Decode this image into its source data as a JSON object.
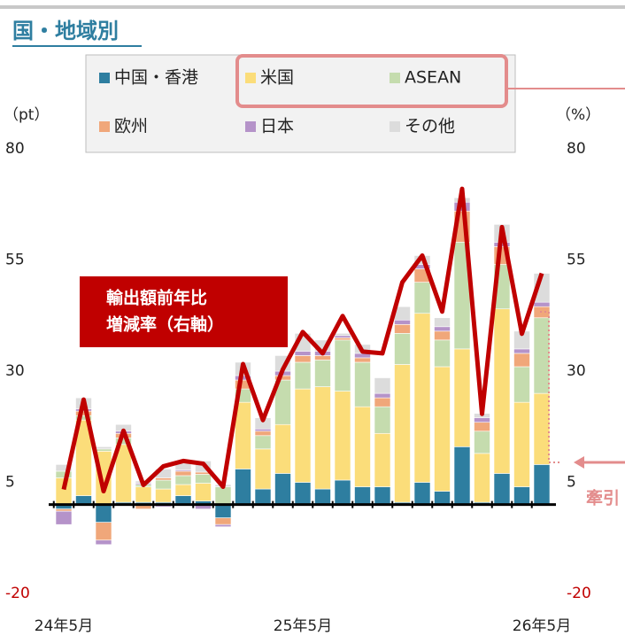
{
  "chart_data": {
    "type": "bar",
    "title": "国・地域別",
    "y_unit": "（pt）",
    "y2_unit": "（%）",
    "annotation": [
      "輸出額前年比",
      "増減率（右軸）"
    ],
    "side_note": "牽引",
    "categories": [
      "24年5月",
      null,
      null,
      null,
      null,
      null,
      null,
      null,
      null,
      null,
      null,
      null,
      "25年5月",
      null,
      null,
      null,
      null,
      null,
      null,
      null,
      null,
      null,
      null,
      null,
      "26年5月"
    ],
    "series": [
      {
        "name": "中国・香港",
        "color": "#2e7ea0",
        "values": [
          -1,
          2,
          -4,
          0.5,
          0.5,
          0.5,
          2,
          0.8,
          -3,
          8,
          3.5,
          7,
          5,
          3.5,
          5.5,
          4,
          4,
          0.5,
          5,
          3,
          13,
          0.5,
          7,
          4,
          9
        ]
      },
      {
        "name": "米国",
        "color": "#fbdd7a",
        "values": [
          6,
          17,
          12,
          13,
          3.5,
          3,
          2.5,
          4,
          0,
          15,
          9,
          11,
          21,
          23,
          20,
          18,
          12,
          31,
          38,
          28,
          22,
          11,
          37,
          19,
          16
        ]
      },
      {
        "name": "ASEAN",
        "color": "#c5dcae",
        "values": [
          1.5,
          1,
          0.5,
          1.5,
          0.5,
          2,
          2,
          2,
          4,
          3,
          3,
          10,
          6,
          6,
          11.5,
          10,
          6,
          7,
          7,
          6,
          24,
          5,
          10,
          8,
          17
        ]
      },
      {
        "name": "欧州",
        "color": "#f0a77a",
        "values": [
          -0.5,
          1,
          -4,
          1,
          -1,
          0.5,
          1,
          0.5,
          -1.5,
          2,
          1,
          1,
          1.5,
          1,
          0.5,
          1,
          2,
          2,
          3,
          2,
          7,
          2,
          4,
          3,
          2.5
        ]
      },
      {
        "name": "日本",
        "color": "#b593c9",
        "values": [
          -3,
          0.5,
          -1,
          0.5,
          0.3,
          -0.5,
          0.3,
          -1,
          -0.5,
          1,
          0.5,
          1,
          1,
          1,
          0.5,
          1,
          1,
          1,
          1,
          1,
          2,
          1,
          1,
          1,
          1
        ]
      },
      {
        "name": "その他",
        "color": "#dcdcdc",
        "values": [
          1.5,
          2.5,
          0.5,
          1.5,
          0.5,
          2,
          1.5,
          2.5,
          0.5,
          3,
          2.5,
          3.5,
          4,
          2.5,
          0.5,
          2,
          3.5,
          3,
          2,
          2,
          1,
          1,
          4,
          4,
          6.5
        ]
      },
      {
        "type": "line",
        "axis": "y2",
        "color": "#c00000",
        "values": [
          3.4,
          23.6,
          3,
          16.6,
          4.4,
          8.6,
          9.8,
          9.2,
          4,
          31.6,
          19,
          30.4,
          38.8,
          34,
          42.4,
          34.4,
          34,
          50,
          56,
          43.4,
          71,
          20.4,
          62.4,
          38.4,
          52
        ]
      }
    ],
    "ylim": [
      -20,
      80
    ],
    "yticks": [
      80,
      55,
      30,
      5,
      -20
    ],
    "y2lim": [
      -20,
      80
    ],
    "y2ticks": [
      80,
      55,
      30,
      5,
      -20
    ],
    "negative_tick_color": "#c00000",
    "legend": "top"
  }
}
